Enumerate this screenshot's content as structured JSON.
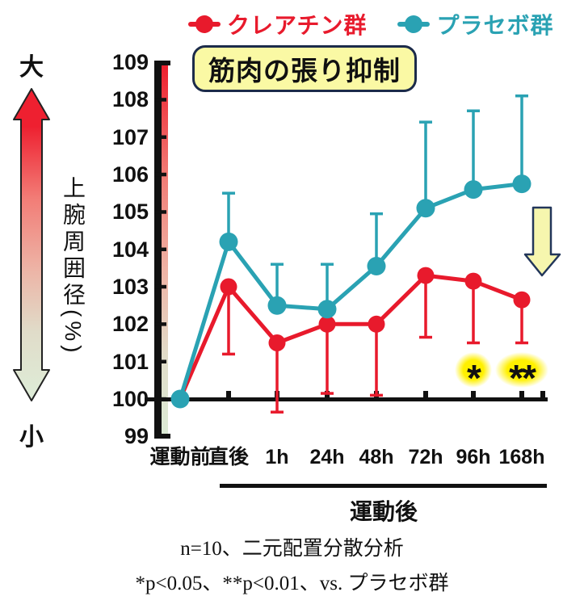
{
  "legend": {
    "items": [
      {
        "label": "クレアチン群",
        "color": "#E81A2C"
      },
      {
        "label": "プラセボ群",
        "color": "#2AA2B3"
      }
    ]
  },
  "title_box": {
    "text": "筋肉の張り抑制",
    "bg_color": "#FAF9A4",
    "border_color": "#1C2B4A"
  },
  "left_scale": {
    "top_label": "大",
    "bottom_label": "小"
  },
  "annotations": {
    "down_arrow_color": "#F6F6AE"
  },
  "caption": {
    "line1": "n=10、二元配置分散分析",
    "line2": "*p<0.05、**p<0.01、vs. プラセボ群"
  },
  "chart_data": {
    "type": "line",
    "title": "筋肉の張り抑制",
    "categories": [
      "運動前",
      "直後",
      "1h",
      "24h",
      "48h",
      "72h",
      "96h",
      "168h"
    ],
    "x_group_label": "運動後",
    "ylabel": "上腕周囲径(%)",
    "ylim": [
      99,
      109
    ],
    "y_ticks": [
      109,
      108,
      107,
      106,
      105,
      104,
      103,
      102,
      101,
      100,
      99
    ],
    "grid": false,
    "legend_position": "top",
    "series": [
      {
        "name": "クレアチン群",
        "color": "#E81A2C",
        "values": [
          100,
          103.0,
          101.5,
          102.0,
          102.0,
          103.3,
          103.15,
          102.65
        ],
        "error_low": [
          null,
          101.2,
          99.65,
          100.15,
          100.1,
          101.65,
          101.5,
          101.5
        ]
      },
      {
        "name": "プラセボ群",
        "color": "#2AA2B3",
        "values": [
          100,
          104.2,
          102.5,
          102.4,
          103.55,
          105.1,
          105.6,
          105.75
        ],
        "error_high": [
          null,
          105.5,
          103.6,
          103.6,
          104.95,
          107.4,
          107.7,
          108.1
        ]
      }
    ],
    "significance": [
      {
        "category": "96h",
        "marker": "*"
      },
      {
        "category": "168h",
        "marker": "**"
      }
    ]
  }
}
